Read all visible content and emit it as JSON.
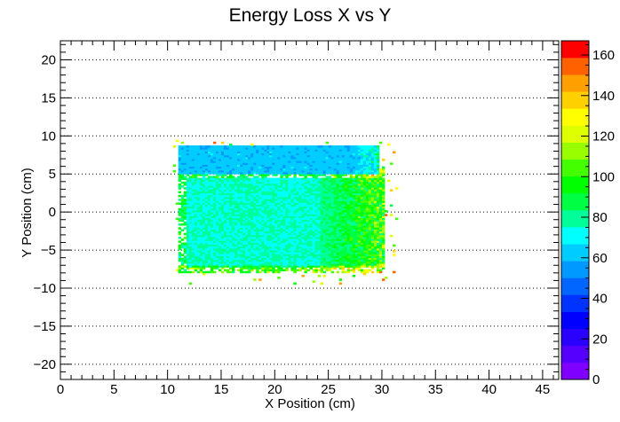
{
  "chart_data": {
    "type": "heatmap",
    "title": "Energy Loss X vs Y",
    "xlabel": "X Position (cm)",
    "ylabel": "Y Position (cm)",
    "xlim": [
      0,
      46.5
    ],
    "ylim": [
      -22,
      22.5
    ],
    "x_ticks": [
      "0",
      "5",
      "10",
      "15",
      "20",
      "25",
      "30",
      "35",
      "40",
      "45"
    ],
    "y_ticks": [
      "−20",
      "−15",
      "−10",
      "−5",
      "0",
      "5",
      "10",
      "15",
      "20"
    ],
    "grid": "horizontal dotted",
    "colorbar": {
      "min": 0,
      "max": 167,
      "ticks": [
        "0",
        "20",
        "40",
        "60",
        "80",
        "100",
        "120",
        "140",
        "160"
      ],
      "colors": [
        "#7f00ff",
        "#5500ff",
        "#2a00ff",
        "#0000ff",
        "#0033ff",
        "#0066ff",
        "#0099ff",
        "#00ccff",
        "#00ffff",
        "#00ff99",
        "#00ff44",
        "#00ff00",
        "#44ff00",
        "#99ff00",
        "#ddff00",
        "#ffff00",
        "#ffd000",
        "#ffa000",
        "#ff6000",
        "#ff0000"
      ]
    },
    "cell_size": [
      0.25,
      0.25
    ],
    "regions": [
      {
        "x": [
          11,
          29.5
        ],
        "y": [
          5,
          8.5
        ],
        "value": 62
      },
      {
        "x": [
          11,
          27
        ],
        "y": [
          -8,
          5
        ],
        "value": 75
      },
      {
        "x": [
          25,
          30
        ],
        "y": [
          -7,
          6
        ],
        "value": 100
      }
    ]
  }
}
